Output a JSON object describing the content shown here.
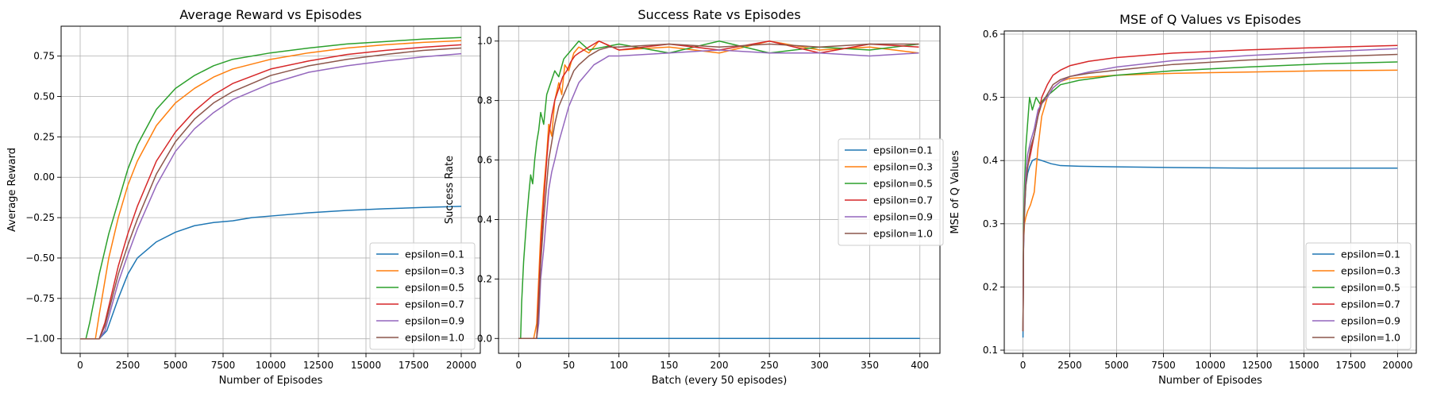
{
  "chart_data": [
    {
      "type": "line",
      "title": "Average Reward vs Episodes",
      "xlabel": "Number of Episodes",
      "ylabel": "Average Reward",
      "xlim": [
        -1000,
        21000
      ],
      "ylim": [
        -1.09,
        0.935
      ],
      "xticks": [
        0,
        2500,
        5000,
        7500,
        10000,
        12500,
        15000,
        17500,
        20000
      ],
      "xticklabels": [
        "0",
        "2500",
        "5000",
        "7500",
        "10000",
        "12500",
        "15000",
        "17500",
        "20000"
      ],
      "yticks": [
        -1.0,
        -0.75,
        -0.5,
        -0.25,
        0.0,
        0.25,
        0.5,
        0.75
      ],
      "yticklabels": [
        "−1.00",
        "−0.75",
        "−0.50",
        "−0.25",
        "0.00",
        "0.25",
        "0.50",
        "0.75"
      ],
      "grid": true,
      "legend": "lower right",
      "series": [
        {
          "name": "epsilon=0.1",
          "color": "#1f77b4",
          "x": [
            0,
            500,
            1000,
            1400,
            2000,
            2500,
            3000,
            4000,
            5000,
            6000,
            7000,
            8000,
            9000,
            10000,
            12000,
            14000,
            16000,
            18000,
            20000
          ],
          "y": [
            -1.0,
            -1.0,
            -1.0,
            -0.95,
            -0.75,
            -0.6,
            -0.5,
            -0.4,
            -0.34,
            -0.3,
            -0.28,
            -0.27,
            -0.25,
            -0.24,
            -0.22,
            -0.205,
            -0.195,
            -0.187,
            -0.18
          ]
        },
        {
          "name": "epsilon=0.3",
          "color": "#ff7f0e",
          "x": [
            0,
            500,
            800,
            1000,
            1500,
            2000,
            2500,
            3000,
            4000,
            5000,
            6000,
            7000,
            8000,
            10000,
            12000,
            14000,
            16000,
            18000,
            20000
          ],
          "y": [
            -1.0,
            -1.0,
            -1.0,
            -0.85,
            -0.5,
            -0.25,
            -0.05,
            0.1,
            0.32,
            0.46,
            0.55,
            0.62,
            0.67,
            0.73,
            0.77,
            0.8,
            0.82,
            0.835,
            0.845
          ]
        },
        {
          "name": "epsilon=0.5",
          "color": "#2ca02c",
          "x": [
            0,
            300,
            500,
            1000,
            1500,
            2000,
            2500,
            3000,
            4000,
            5000,
            6000,
            7000,
            8000,
            10000,
            12000,
            14000,
            16000,
            18000,
            20000
          ],
          "y": [
            -1.0,
            -1.0,
            -0.9,
            -0.6,
            -0.35,
            -0.15,
            0.05,
            0.2,
            0.42,
            0.55,
            0.63,
            0.69,
            0.73,
            0.77,
            0.8,
            0.825,
            0.84,
            0.855,
            0.865
          ]
        },
        {
          "name": "epsilon=0.7",
          "color": "#d62728",
          "x": [
            0,
            500,
            1000,
            1300,
            2000,
            2500,
            3000,
            4000,
            5000,
            6000,
            7000,
            8000,
            10000,
            12000,
            14000,
            16000,
            18000,
            20000
          ],
          "y": [
            -1.0,
            -1.0,
            -1.0,
            -0.9,
            -0.55,
            -0.35,
            -0.18,
            0.1,
            0.28,
            0.41,
            0.51,
            0.58,
            0.67,
            0.72,
            0.76,
            0.785,
            0.805,
            0.82
          ]
        },
        {
          "name": "epsilon=0.9",
          "color": "#9467bd",
          "x": [
            0,
            500,
            1000,
            1300,
            2000,
            2500,
            3000,
            4000,
            5000,
            6000,
            7000,
            8000,
            10000,
            12000,
            14000,
            16000,
            18000,
            20000
          ],
          "y": [
            -1.0,
            -1.0,
            -1.0,
            -0.95,
            -0.65,
            -0.48,
            -0.32,
            -0.05,
            0.16,
            0.3,
            0.4,
            0.48,
            0.58,
            0.65,
            0.69,
            0.72,
            0.745,
            0.765
          ]
        },
        {
          "name": "epsilon=1.0",
          "color": "#8c564b",
          "x": [
            0,
            500,
            1000,
            1300,
            2000,
            2500,
            3000,
            4000,
            5000,
            6000,
            7000,
            8000,
            10000,
            12000,
            14000,
            16000,
            18000,
            20000
          ],
          "y": [
            -1.0,
            -1.0,
            -1.0,
            -0.92,
            -0.6,
            -0.42,
            -0.26,
            0.02,
            0.22,
            0.36,
            0.46,
            0.53,
            0.63,
            0.69,
            0.73,
            0.76,
            0.785,
            0.8
          ]
        }
      ]
    },
    {
      "type": "line",
      "title": "Success Rate vs Episodes",
      "xlabel": "Batch (every 50 episodes)",
      "ylabel": "Success Rate",
      "xlim": [
        -20,
        420
      ],
      "ylim": [
        -0.05,
        1.05
      ],
      "xticks": [
        0,
        50,
        100,
        150,
        200,
        250,
        300,
        350,
        400
      ],
      "xticklabels": [
        "0",
        "50",
        "100",
        "150",
        "200",
        "250",
        "300",
        "350",
        "400"
      ],
      "yticks": [
        0.0,
        0.2,
        0.4,
        0.6,
        0.8,
        1.0
      ],
      "yticklabels": [
        "0.0",
        "0.2",
        "0.4",
        "0.6",
        "0.8",
        "1.0"
      ],
      "grid": true,
      "legend": "center right",
      "series": [
        {
          "name": "epsilon=0.1",
          "color": "#1f77b4",
          "x": [
            0,
            400
          ],
          "y": [
            0.0,
            0.0
          ]
        },
        {
          "name": "epsilon=0.3",
          "color": "#ff7f0e",
          "x": [
            0,
            15,
            18,
            20,
            22,
            25,
            28,
            30,
            33,
            36,
            40,
            43,
            46,
            50,
            55,
            60,
            70,
            80,
            100,
            150,
            200,
            250,
            300,
            350,
            399
          ],
          "y": [
            0.0,
            0.0,
            0.05,
            0.2,
            0.35,
            0.5,
            0.62,
            0.72,
            0.68,
            0.8,
            0.86,
            0.82,
            0.92,
            0.9,
            0.96,
            0.98,
            0.96,
            1.0,
            0.97,
            0.98,
            0.96,
            1.0,
            0.97,
            0.98,
            0.96
          ]
        },
        {
          "name": "epsilon=0.5",
          "color": "#2ca02c",
          "x": [
            0,
            2,
            3,
            5,
            8,
            10,
            12,
            14,
            16,
            18,
            20,
            22,
            25,
            28,
            32,
            36,
            40,
            45,
            50,
            55,
            60,
            70,
            100,
            150,
            200,
            250,
            300,
            350,
            399
          ],
          "y": [
            0.0,
            0.0,
            0.12,
            0.26,
            0.4,
            0.48,
            0.55,
            0.52,
            0.6,
            0.66,
            0.7,
            0.76,
            0.72,
            0.82,
            0.86,
            0.9,
            0.88,
            0.94,
            0.96,
            0.98,
            1.0,
            0.97,
            0.99,
            0.96,
            1.0,
            0.96,
            0.98,
            0.97,
            0.99
          ]
        },
        {
          "name": "epsilon=0.7",
          "color": "#d62728",
          "x": [
            0,
            18,
            20,
            22,
            25,
            28,
            30,
            33,
            36,
            40,
            44,
            48,
            52,
            56,
            60,
            70,
            80,
            100,
            150,
            200,
            250,
            300,
            350,
            399
          ],
          "y": [
            0.0,
            0.0,
            0.15,
            0.3,
            0.46,
            0.6,
            0.68,
            0.75,
            0.8,
            0.84,
            0.88,
            0.9,
            0.93,
            0.95,
            0.96,
            0.98,
            1.0,
            0.97,
            0.99,
            0.97,
            1.0,
            0.96,
            0.99,
            0.98
          ]
        },
        {
          "name": "epsilon=0.9",
          "color": "#9467bd",
          "x": [
            0,
            18,
            20,
            22,
            25,
            28,
            30,
            33,
            36,
            40,
            45,
            50,
            55,
            60,
            65,
            70,
            75,
            80,
            90,
            100,
            150,
            200,
            250,
            300,
            350,
            399
          ],
          "y": [
            0.0,
            0.0,
            0.05,
            0.2,
            0.3,
            0.42,
            0.5,
            0.56,
            0.6,
            0.66,
            0.72,
            0.78,
            0.82,
            0.86,
            0.88,
            0.9,
            0.92,
            0.93,
            0.95,
            0.95,
            0.96,
            0.97,
            0.96,
            0.96,
            0.95,
            0.96
          ]
        },
        {
          "name": "epsilon=1.0",
          "color": "#8c564b",
          "x": [
            0,
            18,
            20,
            22,
            25,
            28,
            30,
            33,
            36,
            40,
            45,
            50,
            55,
            60,
            70,
            80,
            90,
            100,
            150,
            200,
            250,
            300,
            350,
            399
          ],
          "y": [
            0.0,
            0.0,
            0.1,
            0.25,
            0.4,
            0.52,
            0.6,
            0.66,
            0.72,
            0.78,
            0.82,
            0.86,
            0.9,
            0.92,
            0.95,
            0.97,
            0.98,
            0.98,
            0.99,
            0.98,
            0.99,
            0.98,
            0.99,
            0.99
          ]
        }
      ]
    },
    {
      "type": "line",
      "title": "MSE of Q Values vs Episodes",
      "xlabel": "Number of Episodes",
      "ylabel": "MSE of Q Values",
      "xlim": [
        -1000,
        21000
      ],
      "ylim": [
        0.095,
        0.605
      ],
      "xticks": [
        0,
        2500,
        5000,
        7500,
        10000,
        12500,
        15000,
        17500,
        20000
      ],
      "xticklabels": [
        "0",
        "2500",
        "5000",
        "7500",
        "10000",
        "12500",
        "15000",
        "17500",
        "20000"
      ],
      "yticks": [
        0.1,
        0.2,
        0.3,
        0.4,
        0.5,
        0.6
      ],
      "yticklabels": [
        "0.1",
        "0.2",
        "0.3",
        "0.4",
        "0.5",
        "0.6"
      ],
      "grid": true,
      "legend": "lower right",
      "series": [
        {
          "name": "epsilon=0.1",
          "color": "#1f77b4",
          "x": [
            0,
            20,
            60,
            100,
            150,
            250,
            350,
            500,
            700,
            1000,
            1500,
            2000,
            3000,
            5000,
            8000,
            12000,
            16000,
            20000
          ],
          "y": [
            0.12,
            0.25,
            0.3,
            0.33,
            0.36,
            0.38,
            0.39,
            0.4,
            0.403,
            0.4,
            0.395,
            0.392,
            0.391,
            0.39,
            0.389,
            0.388,
            0.388,
            0.388
          ]
        },
        {
          "name": "epsilon=0.3",
          "color": "#ff7f0e",
          "x": [
            0,
            30,
            80,
            150,
            250,
            400,
            600,
            800,
            1000,
            1300,
            1600,
            2000,
            2500,
            3500,
            5000,
            8000,
            12000,
            16000,
            20000
          ],
          "y": [
            0.13,
            0.27,
            0.3,
            0.31,
            0.32,
            0.33,
            0.35,
            0.42,
            0.47,
            0.5,
            0.515,
            0.525,
            0.53,
            0.532,
            0.535,
            0.538,
            0.54,
            0.542,
            0.543
          ]
        },
        {
          "name": "epsilon=0.5",
          "color": "#2ca02c",
          "x": [
            0,
            30,
            80,
            150,
            250,
            350,
            500,
            700,
            900,
            1200,
            1600,
            2000,
            3000,
            5000,
            8000,
            12000,
            16000,
            20000
          ],
          "y": [
            0.13,
            0.3,
            0.36,
            0.42,
            0.46,
            0.5,
            0.48,
            0.5,
            0.49,
            0.5,
            0.51,
            0.52,
            0.527,
            0.535,
            0.542,
            0.548,
            0.553,
            0.556
          ]
        },
        {
          "name": "epsilon=0.7",
          "color": "#d62728",
          "x": [
            0,
            30,
            80,
            150,
            250,
            400,
            600,
            800,
            1000,
            1300,
            1600,
            2000,
            2500,
            3500,
            5000,
            8000,
            12000,
            16000,
            20000
          ],
          "y": [
            0.13,
            0.28,
            0.33,
            0.37,
            0.39,
            0.41,
            0.44,
            0.47,
            0.5,
            0.52,
            0.535,
            0.543,
            0.55,
            0.557,
            0.563,
            0.57,
            0.575,
            0.579,
            0.582
          ]
        },
        {
          "name": "epsilon=0.9",
          "color": "#9467bd",
          "x": [
            0,
            30,
            80,
            150,
            250,
            400,
            600,
            800,
            1000,
            1300,
            1600,
            2000,
            2500,
            3500,
            5000,
            8000,
            12000,
            16000,
            20000
          ],
          "y": [
            0.13,
            0.26,
            0.33,
            0.38,
            0.41,
            0.43,
            0.45,
            0.48,
            0.49,
            0.5,
            0.515,
            0.525,
            0.533,
            0.54,
            0.548,
            0.558,
            0.566,
            0.572,
            0.577
          ]
        },
        {
          "name": "epsilon=1.0",
          "color": "#8c564b",
          "x": [
            0,
            30,
            80,
            150,
            250,
            400,
            600,
            800,
            1000,
            1300,
            1600,
            2000,
            2500,
            3500,
            5000,
            8000,
            12000,
            16000,
            20000
          ],
          "y": [
            0.13,
            0.27,
            0.32,
            0.36,
            0.39,
            0.42,
            0.44,
            0.47,
            0.49,
            0.505,
            0.52,
            0.528,
            0.533,
            0.538,
            0.543,
            0.552,
            0.559,
            0.564,
            0.568
          ]
        }
      ]
    }
  ]
}
